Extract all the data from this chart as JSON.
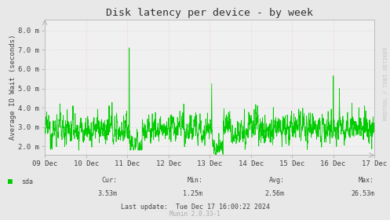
{
  "title": "Disk latency per device - by week",
  "ylabel": "Average IO Wait (seconds)",
  "bg_color": "#e8e8e8",
  "plot_bg_color": "#f0f0f0",
  "line_color": "#00cc00",
  "grid_color_h": "#c8c8c8",
  "grid_color_v": "#ffaaaa",
  "ylim_low": 0.00155,
  "ylim_high": 0.00855,
  "ytick_vals": [
    0.002,
    0.003,
    0.004,
    0.005,
    0.006,
    0.007,
    0.008
  ],
  "ytick_labels": [
    "2.0 m",
    "3.0 m",
    "4.0 m",
    "5.0 m",
    "6.0 m",
    "7.0 m",
    "8.0 m"
  ],
  "xtick_positions": [
    0,
    1,
    2,
    3,
    4,
    5,
    6,
    7,
    8
  ],
  "xtick_labels": [
    "09 Dec",
    "10 Dec",
    "11 Dec",
    "12 Dec",
    "13 Dec",
    "14 Dec",
    "15 Dec",
    "16 Dec",
    "17 Dec"
  ],
  "n_points": 2016,
  "legend_label": "sda",
  "legend_color": "#00cc00",
  "cur_val": "3.53m",
  "min_val": "1.25m",
  "avg_val": "2.56m",
  "max_val": "26.53m",
  "last_update": "Tue Dec 17 16:00:22 2024",
  "footer": "Munin 2.0.33-1",
  "watermark": "RRDTOOL / TOBI OETIKER",
  "title_fontsize": 9.5,
  "ylabel_fontsize": 6.5,
  "tick_fontsize": 6.5,
  "small_fontsize": 6.0,
  "watermark_fontsize": 5.0
}
